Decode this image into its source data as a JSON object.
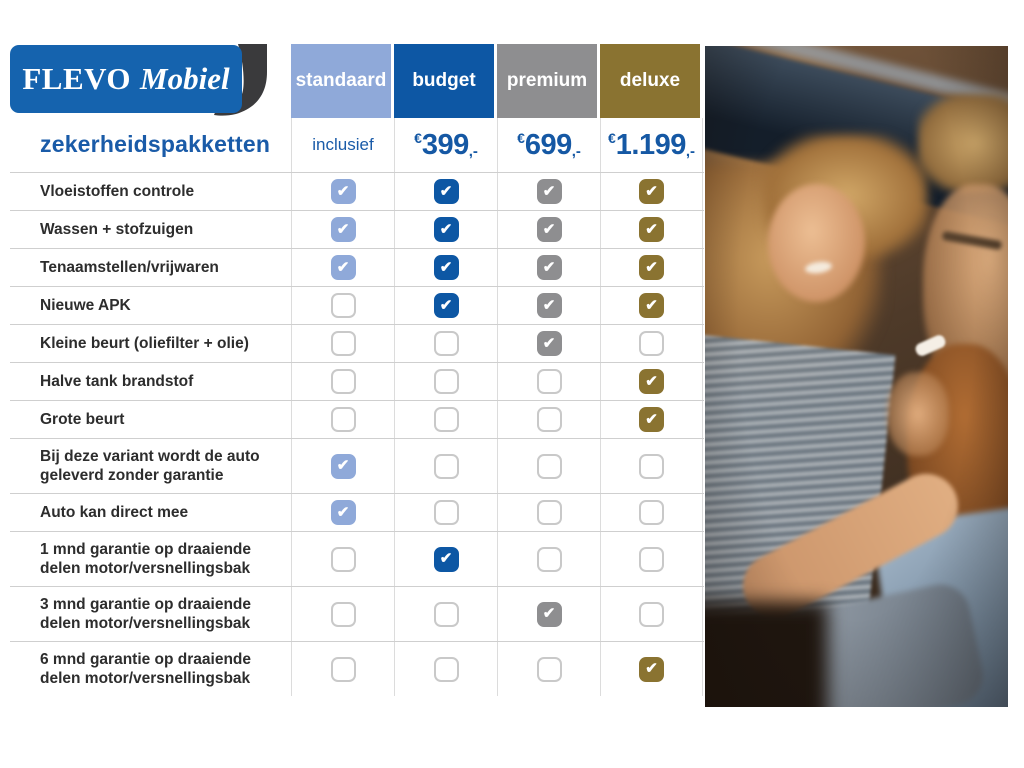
{
  "logo": {
    "name_bold": "FLEVO",
    "name_italic": "Mobiel"
  },
  "title": "zekerheidspakketten",
  "price_header": {
    "currency": "€",
    "suffix": ",-"
  },
  "check_glyph": "✔",
  "columns": [
    {
      "label": "standaard",
      "color": "#8FA9D9",
      "price_text": "inclusief"
    },
    {
      "label": "budget",
      "color": "#0D57A4",
      "price_amount": "399"
    },
    {
      "label": "premium",
      "color": "#8E8E90",
      "price_amount": "699"
    },
    {
      "label": "deluxe",
      "color": "#8A7331",
      "price_amount": "1.199"
    }
  ],
  "rows": [
    {
      "label": "Vloeistoffen controle",
      "checks": [
        true,
        true,
        true,
        true
      ]
    },
    {
      "label": "Wassen + stofzuigen",
      "checks": [
        true,
        true,
        true,
        true
      ]
    },
    {
      "label": "Tenaamstellen/vrijwaren",
      "checks": [
        true,
        true,
        true,
        true
      ]
    },
    {
      "label": "Nieuwe APK",
      "checks": [
        false,
        true,
        true,
        true
      ]
    },
    {
      "label": "Kleine beurt (oliefilter + olie)",
      "checks": [
        false,
        false,
        true,
        false
      ]
    },
    {
      "label": "Halve tank brandstof",
      "checks": [
        false,
        false,
        false,
        true
      ]
    },
    {
      "label": "Grote beurt",
      "checks": [
        false,
        false,
        false,
        true
      ]
    },
    {
      "label": "Bij deze variant wordt de auto geleverd zonder garantie",
      "checks": [
        true,
        false,
        false,
        false
      ]
    },
    {
      "label": "Auto kan direct mee",
      "checks": [
        true,
        false,
        false,
        false
      ]
    },
    {
      "label": "1 mnd garantie op draaiende delen motor/versnellingsbak",
      "checks": [
        false,
        true,
        false,
        false
      ]
    },
    {
      "label": "3 mnd garantie op draaiende delen motor/versnellingsbak",
      "checks": [
        false,
        false,
        true,
        false
      ]
    },
    {
      "label": "6 mnd garantie op draaiende delen motor/versnellingsbak",
      "checks": [
        false,
        false,
        false,
        true
      ]
    }
  ],
  "accent_colors": {
    "logo_blue": "#1563AE",
    "swoosh_dark": "#3A3A3C",
    "title_blue": "#1A5BA8",
    "price_blue": "#1558A4"
  }
}
